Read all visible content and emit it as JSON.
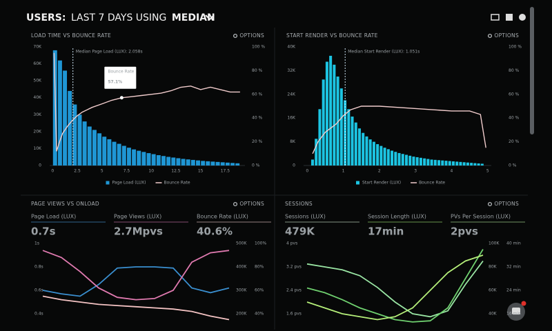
{
  "header": {
    "title_parts": [
      "USERS:",
      "LAST 7 DAYS USING",
      "MEDIAN"
    ]
  },
  "panels": [
    {
      "title": "LOAD TIME VS BOUNCE RATE",
      "options": "OPTIONS",
      "chart": {
        "type": "histogram",
        "bins": [
          0,
          0.5,
          1,
          1.5,
          2,
          2.5,
          3,
          3.5,
          4,
          4.5,
          5,
          5.5,
          6,
          6.5,
          7,
          7.5,
          8,
          8.5,
          9,
          9.5,
          10,
          10.5,
          11,
          11.5,
          12,
          12.5,
          13,
          13.5,
          14,
          14.5,
          15,
          15.5,
          16,
          16.5,
          17,
          17.5,
          18,
          18.5,
          19
        ],
        "xlim": [
          -0.3,
          19.5
        ],
        "xticks": [
          0,
          2.5,
          5,
          7.5,
          10,
          12.5,
          15,
          17.5
        ],
        "ylim": [
          0,
          70000
        ],
        "yticks": [
          {
            "value": 0,
            "label": "0"
          },
          {
            "value": 10000,
            "label": "10K"
          },
          {
            "value": 20000,
            "label": "20K"
          },
          {
            "value": 30000,
            "label": "30K"
          },
          {
            "value": 40000,
            "label": "40K"
          },
          {
            "value": 50000,
            "label": "50K"
          },
          {
            "value": 60000,
            "label": "60K"
          },
          {
            "value": 70000,
            "label": "70K"
          }
        ],
        "y2lim": [
          0,
          100
        ],
        "y2ticks": [
          {
            "value": 0,
            "label": "0 %"
          },
          {
            "value": 20,
            "label": "20 %"
          },
          {
            "value": 40,
            "label": "40 %"
          },
          {
            "value": 60,
            "label": "60 %"
          },
          {
            "value": 80,
            "label": "80 %"
          },
          {
            "value": 100,
            "label": "100 %"
          }
        ],
        "series": [
          {
            "name": "Page Load (LUX)",
            "color": "#1f96d4",
            "values": [
              68000,
              62000,
              56000,
              44000,
              36000,
              30000,
              26000,
              23000,
              21000,
              19000,
              17000,
              15500,
              14000,
              12800,
              11600,
              10500,
              9500,
              8700,
              8000,
              7300,
              6700,
              6100,
              5600,
              5100,
              4700,
              4300,
              3900,
              3600,
              3300,
              3000,
              2700,
              2500,
              2300,
              2100,
              1900,
              1700,
              1500,
              1300
            ]
          },
          {
            "name": "Bounce Rate",
            "color": "#f2cdcd",
            "axis": "y2",
            "x": [
              0.15,
              0.4,
              0.7,
              1,
              1.5,
              2,
              2.5,
              3,
              4,
              5,
              6,
              7,
              8,
              9,
              10,
              11,
              12,
              13,
              14,
              15,
              16,
              17,
              18,
              19
            ],
            "values": [
              95,
              12,
              20,
              27,
              33,
              38,
              42,
              45,
              49,
              52,
              55,
              57.1,
              58,
              59,
              60,
              61,
              63,
              66,
              67,
              64,
              66,
              64,
              62,
              62
            ]
          }
        ],
        "annotation": {
          "text": "Median Page Load (LUX): 2.058s",
          "x": 2.058
        },
        "tooltip": {
          "title": "Bounce Rate",
          "x": 7,
          "value": 57.1,
          "value_label": "57.1%"
        }
      }
    },
    {
      "title": "START RENDER VS BOUNCE RATE",
      "options": "OPTIONS",
      "chart": {
        "type": "histogram",
        "bins": [
          0.1,
          0.2,
          0.3,
          0.4,
          0.5,
          0.6,
          0.7,
          0.8,
          0.9,
          1,
          1.1,
          1.2,
          1.3,
          1.4,
          1.5,
          1.6,
          1.7,
          1.8,
          1.9,
          2,
          2.1,
          2.2,
          2.3,
          2.4,
          2.5,
          2.6,
          2.7,
          2.8,
          2.9,
          3,
          3.1,
          3.2,
          3.3,
          3.4,
          3.5,
          3.6,
          3.7,
          3.8,
          3.9,
          4,
          4.1,
          4.2,
          4.3,
          4.4,
          4.5,
          4.6,
          4.7,
          4.8,
          4.9
        ],
        "xlim": [
          -0.1,
          5.1
        ],
        "xticks": [
          0,
          1,
          2,
          3,
          4,
          5
        ],
        "ylim": [
          0,
          40000
        ],
        "yticks": [
          {
            "value": 0,
            "label": "0"
          },
          {
            "value": 8000,
            "label": "8K"
          },
          {
            "value": 16000,
            "label": "16K"
          },
          {
            "value": 24000,
            "label": "24K"
          },
          {
            "value": 32000,
            "label": "32K"
          },
          {
            "value": 40000,
            "label": "40K"
          }
        ],
        "y2lim": [
          0,
          100
        ],
        "y2ticks": [
          {
            "value": 0,
            "label": "0 %"
          },
          {
            "value": 20,
            "label": "20 %"
          },
          {
            "value": 40,
            "label": "40 %"
          },
          {
            "value": 60,
            "label": "60 %"
          },
          {
            "value": 80,
            "label": "80 %"
          },
          {
            "value": 100,
            "label": "100 %"
          }
        ],
        "series": [
          {
            "name": "Start Render (LUX)",
            "color": "#1cc4e2",
            "values": [
              2000,
              9000,
              19000,
              29000,
              35000,
              37000,
              34000,
              30000,
              26000,
              22000,
              19000,
              16500,
              14500,
              12500,
              11000,
              9800,
              8800,
              8000,
              7200,
              6600,
              6000,
              5500,
              5000,
              4600,
              4200,
              3900,
              3600,
              3300,
              3000,
              2800,
              2600,
              2400,
              2200,
              2000,
              1900,
              1800,
              1700,
              1600,
              1500,
              1400,
              1300,
              1200,
              1100,
              1000,
              900,
              800,
              700,
              600
            ]
          },
          {
            "name": "Bounce Rate",
            "color": "#f2cdcd",
            "axis": "y2",
            "x": [
              0.15,
              0.3,
              0.5,
              0.8,
              1,
              1.2,
              1.5,
              2,
              2.5,
              3,
              3.5,
              4,
              4.5,
              4.8,
              4.95
            ],
            "values": [
              10,
              20,
              28,
              35,
              42,
              47,
              50,
              50,
              49,
              48,
              47,
              46,
              46,
              43,
              15
            ]
          }
        ],
        "annotation": {
          "text": "Median Start Render (LUX): 1.051s",
          "x": 1.051
        }
      }
    },
    {
      "title": "PAGE VIEWS VS ONLOAD",
      "options": "OPTIONS",
      "kpis": [
        {
          "label": "Page Load (LUX)",
          "value": "0.7s",
          "color": "#4aa0e4"
        },
        {
          "label": "Page Views (LUX)",
          "value": "2.7Mpvs",
          "color": "#d879b8"
        },
        {
          "label": "Bounce Rate (LUX)",
          "value": "40.6%",
          "color": "#f6d2d2"
        }
      ],
      "chart": {
        "type": "line",
        "categories": [
          null,
          null,
          null,
          null,
          null,
          null,
          null,
          null,
          null,
          null,
          null
        ],
        "ylim": [
          0.3,
          1
        ],
        "yticks": [
          {
            "value": 0.4,
            "label": "0.4s"
          },
          {
            "value": 0.6,
            "label": "0.6s"
          },
          {
            "value": 0.8,
            "label": "0.8s"
          },
          {
            "value": 1,
            "label": "1s"
          }
        ],
        "y2lim": [
          150000,
          500000
        ],
        "y2ticks": [
          {
            "value": 200000,
            "label": "200K"
          },
          {
            "value": 300000,
            "label": "300K"
          },
          {
            "value": 400000,
            "label": "400K"
          },
          {
            "value": 500000,
            "label": "500K"
          }
        ],
        "y3lim": [
          30,
          100
        ],
        "y3ticks": [
          {
            "value": 40,
            "label": "40%"
          },
          {
            "value": 60,
            "label": "60%"
          },
          {
            "value": 80,
            "label": "80%"
          },
          {
            "value": 100,
            "label": "100%"
          }
        ],
        "series": [
          {
            "name": "Page Load (LUX)",
            "color": "#3a8fd0",
            "axis": "y",
            "values": [
              0.6,
              0.57,
              0.55,
              0.65,
              0.79,
              0.8,
              0.8,
              0.79,
              0.62,
              0.58,
              0.62
            ]
          },
          {
            "name": "Page Views (LUX)",
            "color": "#e07ab0",
            "axis": "y2",
            "values": [
              470000,
              440000,
              380000,
              310000,
              270000,
              260000,
              265000,
              300000,
              420000,
              460000,
              470000
            ]
          },
          {
            "name": "Bounce Rate (LUX)",
            "color": "#f5c4c4",
            "axis": "y3",
            "values": [
              55,
              52,
              50,
              48,
              47,
              46,
              45,
              44,
              42,
              38,
              35
            ]
          }
        ]
      }
    },
    {
      "title": "SESSIONS",
      "options": "OPTIONS",
      "kpis": [
        {
          "label": "Sessions (LUX)",
          "value": "479K",
          "color": "#d8f2d8"
        },
        {
          "label": "Session Length (LUX)",
          "value": "17min",
          "color": "#a8f07a"
        },
        {
          "label": "PVs Per Session (LUX)",
          "value": "2pvs",
          "color": "#b8f0a0"
        }
      ],
      "chart": {
        "type": "line",
        "categories": [
          null,
          null,
          null,
          null,
          null,
          null,
          null,
          null,
          null,
          null,
          null
        ],
        "ylim": [
          1.2,
          4
        ],
        "yticks": [
          {
            "value": 1.6,
            "label": "1.6 pvs"
          },
          {
            "value": 2.4,
            "label": "2.4 pvs"
          },
          {
            "value": 3.2,
            "label": "3.2 pvs"
          },
          {
            "value": 4,
            "label": "4 pvs"
          }
        ],
        "y2lim": [
          30000,
          100000
        ],
        "y2ticks": [
          {
            "value": 40000,
            "label": "40K"
          },
          {
            "value": 60000,
            "label": "60K"
          },
          {
            "value": 80000,
            "label": "80K"
          },
          {
            "value": 100000,
            "label": "100K"
          }
        ],
        "y3lim": [
          12,
          40
        ],
        "y3ticks": [
          {
            "value": 16,
            "label": "16 min"
          },
          {
            "value": 24,
            "label": "24 min"
          },
          {
            "value": 32,
            "label": "32 min"
          },
          {
            "value": 40,
            "label": "40 min"
          }
        ],
        "series": [
          {
            "name": "PVs Per Session (LUX)",
            "color": "#9ae6a4",
            "axis": "y",
            "values": [
              3.3,
              3.2,
              3.1,
              2.9,
              2.5,
              2.0,
              1.6,
              1.5,
              1.7,
              2.6,
              3.4
            ]
          },
          {
            "name": "Sessions (LUX)",
            "color": "#6fd06f",
            "axis": "y2",
            "values": [
              62000,
              58000,
              52000,
              45000,
              40000,
              35000,
              33000,
              34000,
              45000,
              70000,
              95000
            ]
          },
          {
            "name": "Session Length (LUX)",
            "color": "#b6f07a",
            "axis": "y3",
            "values": [
              20,
              18,
              16,
              15,
              14,
              15,
              18,
              24,
              30,
              34,
              36
            ]
          }
        ]
      }
    }
  ]
}
